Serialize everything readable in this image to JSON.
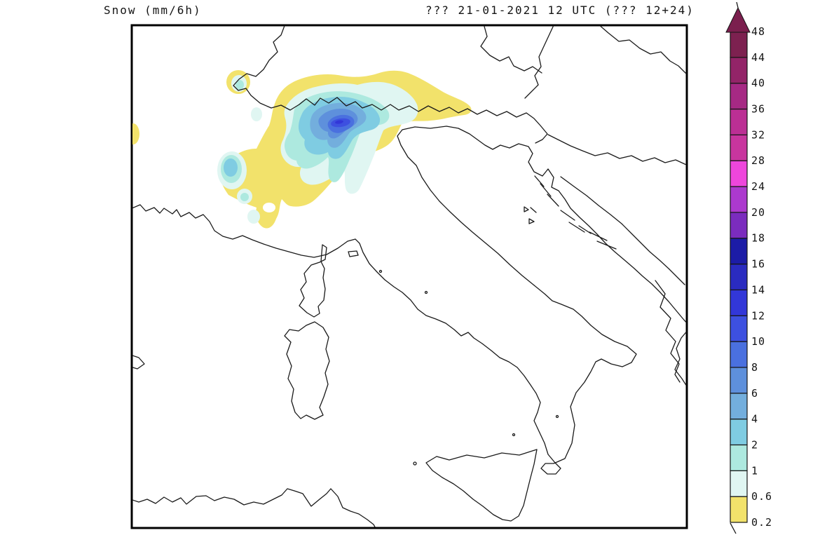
{
  "header": {
    "title": "Snow (mm/6h)",
    "run_info": "??? 21-01-2021 12 UTC (??? 12+24)"
  },
  "colorbar": {
    "unit_ticks": [
      "0.2",
      "0.6",
      "1",
      "2",
      "4",
      "6",
      "8",
      "10",
      "12",
      "14",
      "16",
      "18",
      "20",
      "24",
      "28",
      "32",
      "36",
      "40",
      "44",
      "48"
    ],
    "segment_colors": [
      "#F2E26B",
      "#E0F6F2",
      "#ADE9DF",
      "#7FCCE2",
      "#73AEDD",
      "#5E90DC",
      "#4A70DF",
      "#3D50E0",
      "#3237D8",
      "#2A2BC0",
      "#1C1CA6",
      "#7B2CBE",
      "#AC39CE",
      "#EE46DC",
      "#C8359E",
      "#BB2F94",
      "#A62984",
      "#932468",
      "#7D2150"
    ],
    "arrow_color": "#7B1F4E",
    "line_color": "#151515"
  },
  "palette": {
    "v0_2": "#F2E26B",
    "v0_6": "#E0F6F2",
    "v1": "#ADE9DF",
    "v2": "#7FCCE2",
    "v4": "#73AEDD",
    "v6": "#5E90DC",
    "v8": "#4A70DF",
    "v10": "#3D50E0",
    "v12": "#3237D8"
  },
  "chart_data": {
    "type": "filled-contour-map",
    "title": "Snow (mm/6h)",
    "valid_time": "21-01-2021 12 UTC",
    "forecast_step": "12+24",
    "contour_levels_mm": [
      0.2,
      0.6,
      1,
      2,
      4,
      6,
      8,
      10,
      12,
      14,
      16,
      18,
      20,
      24,
      28,
      32,
      36,
      40,
      44,
      48
    ],
    "legend_position": "right",
    "observed_max_band_mm": "10-12",
    "snow_area_description": "Snow band over the Alps across northwest Italy, Switzerland and into Austria/Slovenia; maximum over the central Alpine ridge"
  }
}
